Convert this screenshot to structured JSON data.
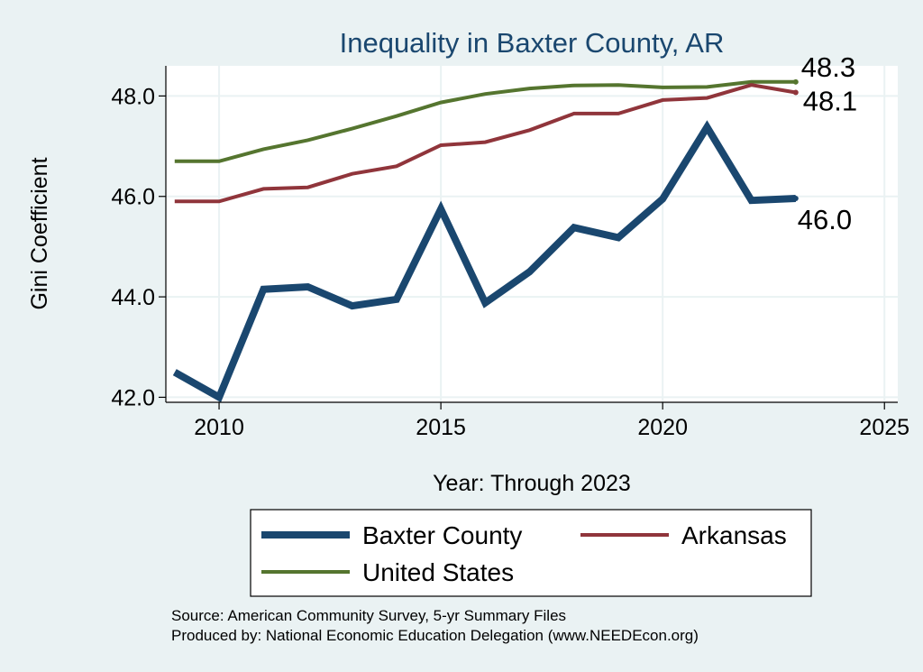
{
  "chart_data": {
    "type": "line",
    "title": "Inequality in Baxter County, AR",
    "xlabel": "Year: Through 2023",
    "ylabel": "Gini Coefficient",
    "xlim": [
      2008.8,
      2025.3
    ],
    "ylim": [
      41.9,
      48.6
    ],
    "xticks": [
      2010,
      2015,
      2020,
      2025
    ],
    "yticks": [
      42.0,
      44.0,
      46.0,
      48.0
    ],
    "ytick_labels": [
      "42.0",
      "44.0",
      "46.0",
      "48.0"
    ],
    "x": [
      2009,
      2010,
      2011,
      2012,
      2013,
      2014,
      2015,
      2016,
      2017,
      2018,
      2019,
      2020,
      2021,
      2022,
      2023
    ],
    "series": [
      {
        "name": "Baxter County",
        "color": "#1a476f",
        "values": [
          42.5,
          42.0,
          44.15,
          44.2,
          43.82,
          43.95,
          45.75,
          43.88,
          44.5,
          45.38,
          45.18,
          45.95,
          47.38,
          45.92,
          45.96
        ],
        "end_label": "46.0"
      },
      {
        "name": "Arkansas",
        "color": "#90353b",
        "values": [
          45.9,
          45.9,
          46.15,
          46.18,
          46.45,
          46.6,
          47.02,
          47.08,
          47.32,
          47.65,
          47.65,
          47.92,
          47.96,
          48.22,
          48.07
        ],
        "end_label": "48.1"
      },
      {
        "name": "United States",
        "color": "#55752f",
        "values": [
          46.7,
          46.7,
          46.94,
          47.12,
          47.35,
          47.6,
          47.87,
          48.04,
          48.15,
          48.21,
          48.22,
          48.17,
          48.18,
          48.28,
          48.28
        ],
        "end_label": "48.3"
      }
    ],
    "legend_position": "bottom",
    "grid": true,
    "source_lines": [
      "Source: American Community Survey, 5-yr Summary Files",
      "Produced by: National Economic Education Delegation (www.NEEDEcon.org)"
    ]
  }
}
